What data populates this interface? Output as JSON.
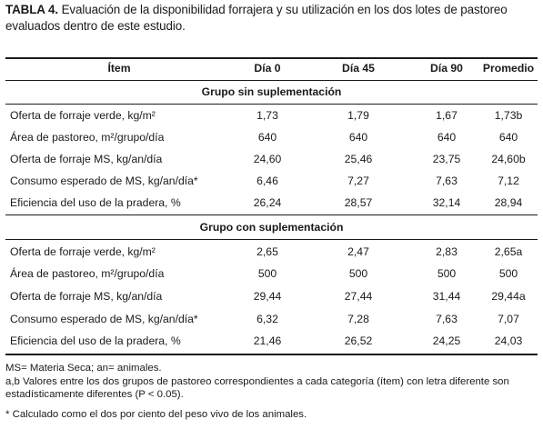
{
  "caption": {
    "label": "TABLA 4.",
    "text": " Evaluación de la disponibilidad forrajera y su utilización en los dos lotes de pastoreo evaluados dentro de este estudio."
  },
  "header": [
    "Ítem",
    "Día 0",
    "Día 45",
    "Día 90",
    "Promedio"
  ],
  "groups": [
    {
      "title": "Grupo sin suplementación",
      "rows": [
        [
          "Oferta de forraje verde, kg/m²",
          "1,73",
          "1,79",
          "1,67",
          "1,73b"
        ],
        [
          "Área de pastoreo, m²/grupo/día",
          "640",
          "640",
          "640",
          "640"
        ],
        [
          "Oferta de forraje MS, kg/an/día",
          "24,60",
          "25,46",
          "23,75",
          "24,60b"
        ],
        [
          "Consumo esperado de MS, kg/an/día*",
          "6,46",
          "7,27",
          "7,63",
          "7,12"
        ],
        [
          "Eficiencia del uso de la pradera, %",
          "26,24",
          "28,57",
          "32,14",
          "28,94"
        ]
      ]
    },
    {
      "title": "Grupo con suplementación",
      "rows": [
        [
          "Oferta de forraje verde, kg/m²",
          "2,65",
          "2,47",
          "2,83",
          "2,65a"
        ],
        [
          "Área de pastoreo, m²/grupo/día",
          "500",
          "500",
          "500",
          "500"
        ],
        [
          "Oferta de forraje MS, kg/an/día",
          "29,44",
          "27,44",
          "31,44",
          "29,44a"
        ],
        [
          "Consumo esperado de MS, kg/an/día*",
          "6,32",
          "7,28",
          "7,63",
          "7,07"
        ],
        [
          "Eficiencia del uso de la pradera, %",
          "21,46",
          "26,52",
          "24,25",
          "24,03"
        ]
      ]
    }
  ],
  "notes": {
    "abbreviations": "MS= Materia Seca; an= animales.",
    "significance": "a,b Valores entre los dos grupos de pastoreo correspondientes a cada categoría (ítem) con letra diferente son estadísticamente diferentes (P < 0.05).",
    "asterisk": "* Calculado como el dos por ciento del peso vivo de los animales."
  }
}
